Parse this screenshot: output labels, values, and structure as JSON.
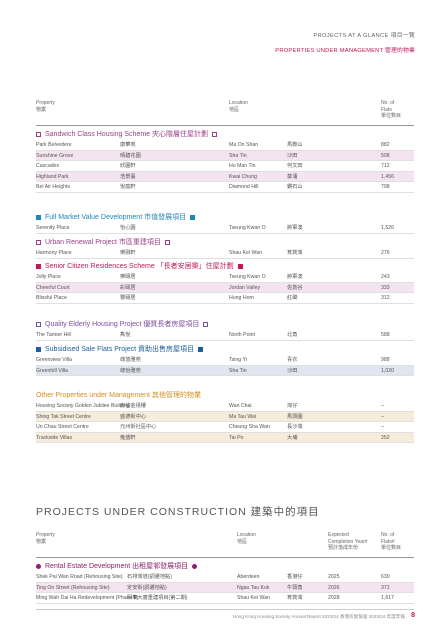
{
  "header": {
    "line1": "PROJECTS AT A GLANCE 項目一覽",
    "line2": "PROPERTIES UNDER MANAGEMENT 管理的物業"
  },
  "table_header": {
    "property": "Property",
    "property_zh": "物業",
    "location": "Location",
    "location_zh": "地區",
    "flats": "No. of",
    "flats2": "Flats",
    "flats_zh": "單位數目"
  },
  "colors": {
    "sandwich": "#9c3f86",
    "fullmarket": "#1f86b8",
    "urban": "#9c3f86",
    "senior": "#c2185b",
    "quality": "#7b4fa0",
    "subsidised": "#1f5fa0",
    "other": "#d18f1e",
    "rental": "#8e1f6e"
  },
  "sections": {
    "sandwich": {
      "title": "Sandwich Class Housing Scheme 夾心階層住屋計劃",
      "rows": [
        {
          "en": "Park Belvedere",
          "zh": "康華苑",
          "loc": "Ma On Shan",
          "loc_zh": "馬鞍山",
          "flats": "882"
        },
        {
          "en": "Sunshine Grove",
          "zh": "晴碧花園",
          "loc": "Sha Tin",
          "loc_zh": "沙田",
          "flats": "508"
        },
        {
          "en": "Cascades",
          "zh": "欣圖軒",
          "loc": "Ho Man Tin",
          "loc_zh": "何文田",
          "flats": "712"
        },
        {
          "en": "Highland Park",
          "zh": "浩景臺",
          "loc": "Kwai Chung",
          "loc_zh": "葵涌",
          "flats": "1,456"
        },
        {
          "en": "Bel Air Heights",
          "zh": "悅庭軒",
          "loc": "Diamond Hill",
          "loc_zh": "鑽石山",
          "flats": "798"
        }
      ]
    },
    "fullmarket": {
      "title": "Full Market Value Development 市值發展項目",
      "rows": [
        {
          "en": "Serenity Place",
          "zh": "怡心園",
          "loc": "Tseung Kwan O",
          "loc_zh": "將軍澳",
          "flats": "1,526"
        }
      ]
    },
    "urban": {
      "title": "Urban Renewal Project 市區重建項目",
      "rows": [
        {
          "en": "Harmony Place",
          "zh": "樂融軒",
          "loc": "Shau Kei Wan",
          "loc_zh": "筲箕灣",
          "flats": "276"
        }
      ]
    },
    "senior": {
      "title": "Senior Citizen Residences Scheme 「長者安居樂」住屋計劃",
      "rows": [
        {
          "en": "Jolly Place",
          "zh": "樂頤居",
          "loc": "Tseung Kwan O",
          "loc_zh": "將軍澳",
          "flats": "243"
        },
        {
          "en": "Cheerful Court",
          "zh": "彩頤居",
          "loc": "Jordan Valley",
          "loc_zh": "佐敦谷",
          "flats": "333"
        },
        {
          "en": "Blissful Place",
          "zh": "豐頤居",
          "loc": "Hung Hom",
          "loc_zh": "紅磡",
          "flats": "312"
        }
      ]
    },
    "quality": {
      "title": "Quality Elderly Housing Project 優質長者房屋項目",
      "rows": [
        {
          "en": "The Tanner Hill",
          "zh": "雋悅",
          "loc": "North Point",
          "loc_zh": "北角",
          "flats": "588"
        }
      ]
    },
    "subsidised": {
      "title": "Subsidised Sale Flats Project 資助出售房屋項目",
      "rows": [
        {
          "en": "Greenview Villa",
          "zh": "綠悠雅苑",
          "loc": "Tsing Yi",
          "loc_zh": "青衣",
          "flats": "988"
        },
        {
          "en": "Greenhill Villa",
          "zh": "綠怡雅苑",
          "loc": "Sha Tin",
          "loc_zh": "沙田",
          "flats": "1,020"
        }
      ]
    },
    "other": {
      "title": "Other Properties under Management 其他管理的物業",
      "rows": [
        {
          "en": "Housing Society Golden Jubilee Building",
          "zh": "房協金禧樓",
          "loc": "Wan Chai",
          "loc_zh": "灣仔",
          "flats": "–"
        },
        {
          "en": "Shing Tak Street Centre",
          "zh": "盛德街中心",
          "loc": "Ma Tau Wai",
          "loc_zh": "馬頭圍",
          "flats": "–"
        },
        {
          "en": "Un Chau Street Centre",
          "zh": "元州街社區中心",
          "loc": "Cheung Sha Wan",
          "loc_zh": "長沙灣",
          "flats": "–"
        },
        {
          "en": "Trackside Villas",
          "zh": "雍盛軒",
          "loc": "Tai Po",
          "loc_zh": "大埔",
          "flats": "252"
        }
      ]
    }
  },
  "construction": {
    "title": "PROJECTS UNDER CONSTRUCTION 建築中的項目",
    "header": {
      "property": "Property",
      "property_zh": "物業",
      "location": "Location",
      "location_zh": "地區",
      "expected": "Expected",
      "expected2": "Completion Year#",
      "expected_zh": "預計落成年份",
      "flats": "No. of",
      "flats2": "Flats#",
      "flats_zh": "單位數目"
    },
    "rental": {
      "title": "Rental Estate Development 出租屋邨發展項目",
      "rows": [
        {
          "en": "Shek Pai Wan Road (Rehousing Site)",
          "zh": "石排灣道(調遷地點)",
          "loc": "Aberdeen",
          "loc_zh": "香港仔",
          "year": "2025",
          "flats": "630"
        },
        {
          "en": "Ting On Street (Rehousing Site)",
          "zh": "定安街(調遷地點)",
          "loc": "Ngau Tau Kok",
          "loc_zh": "牛頭角",
          "year": "2026",
          "flats": "371"
        },
        {
          "en": "Ming Wah Dai Ha Redevelopment (Phase II)",
          "zh": "明華大廈重建項目(第二期)",
          "loc": "Shau Kei Wan",
          "loc_zh": "筲箕灣",
          "year": "2028",
          "flats": "1,617"
        }
      ]
    }
  },
  "footer": {
    "text": "Hong Kong Housing Society Annual Report 2023/24 香港房屋協會 2023/24 年度年報",
    "page": "8"
  }
}
